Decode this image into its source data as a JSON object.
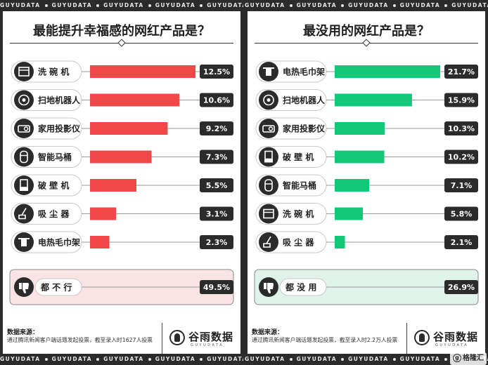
{
  "brand_strip": "GUYUDATA",
  "colors": {
    "left_accent": "#f04848",
    "left_bg": "#f9e3e3",
    "right_accent": "#12c97a",
    "right_bg": "#dff3ea",
    "dark": "#2b2b2b"
  },
  "left": {
    "title": "最能提升幸福感的网红产品是？",
    "source_title": "数据来源：",
    "source_text": "通过腾讯新闻客户端话题发起投票，截至录入时1627人投票",
    "logo": "谷雨数据",
    "logo_sub": "GUYUDATA"
  },
  "right": {
    "title": "最没用的网红产品是？",
    "source_title": "数据来源：",
    "source_text": "通过腾讯新闻客户端话题发起投票，截至录入时2.2万人投票",
    "logo": "谷雨数据",
    "logo_sub": "GUYUDATA"
  },
  "watermark": "格隆汇",
  "chart_data": [
    {
      "type": "bar",
      "title": "最能提升幸福感的网红产品是？",
      "categories": [
        "洗碗机",
        "扫地机器人",
        "家用投影仪",
        "智能马桶",
        "破壁机",
        "吸尘器",
        "电热毛巾架"
      ],
      "display_labels": [
        "洗 碗 机",
        "扫地机器人",
        "家用投影仪",
        "智能马桶",
        "破 壁 机",
        "吸 尘 器",
        "电热毛巾架"
      ],
      "icons": [
        "dishwasher-icon",
        "robot-vacuum-icon",
        "projector-icon",
        "smart-toilet-icon",
        "blender-icon",
        "vacuum-cleaner-icon",
        "towel-rack-icon"
      ],
      "values": [
        12.5,
        10.6,
        9.2,
        7.3,
        5.5,
        3.1,
        2.3
      ],
      "value_labels": [
        "12.5%",
        "10.6%",
        "9.2%",
        "7.3%",
        "5.5%",
        "3.1%",
        "2.3%"
      ],
      "none_option": {
        "label": "都 不 行",
        "value": 49.5,
        "value_label": "49.5%",
        "icon": "thumbs-down-icon"
      }
    },
    {
      "type": "bar",
      "title": "最没用的网红产品是？",
      "categories": [
        "电热毛巾架",
        "扫地机器人",
        "家用投影仪",
        "破壁机",
        "智能马桶",
        "洗碗机",
        "吸尘器"
      ],
      "display_labels": [
        "电热毛巾架",
        "扫地机器人",
        "家用投影仪",
        "破 壁 机",
        "智能马桶",
        "洗 碗 机",
        "吸 尘 器"
      ],
      "icons": [
        "towel-rack-icon",
        "robot-vacuum-icon",
        "projector-icon",
        "blender-icon",
        "smart-toilet-icon",
        "dishwasher-icon",
        "vacuum-cleaner-icon"
      ],
      "values": [
        21.7,
        15.9,
        10.3,
        10.2,
        7.1,
        5.8,
        2.1
      ],
      "value_labels": [
        "21.7%",
        "15.9%",
        "10.3%",
        "10.2%",
        "7.1%",
        "5.8%",
        "2.1%"
      ],
      "none_option": {
        "label": "都 没 用",
        "value": 26.9,
        "value_label": "26.9%",
        "icon": "thumbs-down-icon"
      }
    }
  ]
}
